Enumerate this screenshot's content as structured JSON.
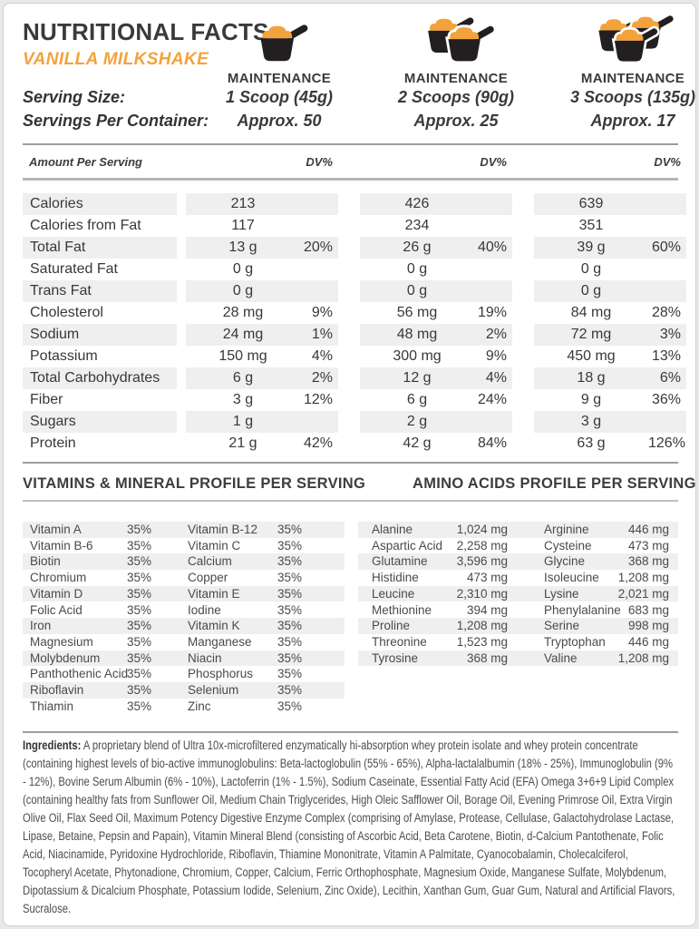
{
  "page": {
    "title": "NUTRITIONAL FACTS",
    "subtitle": "VANILLA MILKSHAKE",
    "accent_color": "#F2A33C",
    "icon_dark_color": "#231F20",
    "serving_size_label": "Serving Size:",
    "servings_per_container_label": "Servings Per Container:"
  },
  "columns": [
    {
      "plan": "MAINTENANCE",
      "serving_size": "1 Scoop (45g)",
      "servings": "Approx. 50",
      "scoops": 1
    },
    {
      "plan": "MAINTENANCE",
      "serving_size": "2 Scoops (90g)",
      "servings": "Approx. 25",
      "scoops": 2
    },
    {
      "plan": "MAINTENANCE",
      "serving_size": "3 Scoops (135g)",
      "servings": "Approx. 17",
      "scoops": 3
    }
  ],
  "nutrition_table": {
    "amount_header": "Amount Per Serving",
    "dv_header": "DV%",
    "rows": [
      {
        "name": "Calories",
        "cols": [
          [
            "213",
            ""
          ],
          [
            "426",
            ""
          ],
          [
            "639",
            ""
          ]
        ]
      },
      {
        "name": "Calories from Fat",
        "cols": [
          [
            "117",
            ""
          ],
          [
            "234",
            ""
          ],
          [
            "351",
            ""
          ]
        ]
      },
      {
        "name": "Total Fat",
        "cols": [
          [
            "13 g",
            "20%"
          ],
          [
            "26 g",
            "40%"
          ],
          [
            "39 g",
            "60%"
          ]
        ]
      },
      {
        "name": "Saturated Fat",
        "cols": [
          [
            "0 g",
            ""
          ],
          [
            "0 g",
            ""
          ],
          [
            "0 g",
            ""
          ]
        ]
      },
      {
        "name": "Trans Fat",
        "cols": [
          [
            "0 g",
            ""
          ],
          [
            "0 g",
            ""
          ],
          [
            "0 g",
            ""
          ]
        ]
      },
      {
        "name": "Cholesterol",
        "cols": [
          [
            "28 mg",
            "9%"
          ],
          [
            "56 mg",
            "19%"
          ],
          [
            "84 mg",
            "28%"
          ]
        ]
      },
      {
        "name": "Sodium",
        "cols": [
          [
            "24 mg",
            "1%"
          ],
          [
            "48 mg",
            "2%"
          ],
          [
            "72 mg",
            "3%"
          ]
        ]
      },
      {
        "name": "Potassium",
        "cols": [
          [
            "150 mg",
            "4%"
          ],
          [
            "300 mg",
            "9%"
          ],
          [
            "450 mg",
            "13%"
          ]
        ]
      },
      {
        "name": "Total Carbohydrates",
        "cols": [
          [
            "6 g",
            "2%"
          ],
          [
            "12 g",
            "4%"
          ],
          [
            "18 g",
            "6%"
          ]
        ]
      },
      {
        "name": "Fiber",
        "cols": [
          [
            "3 g",
            "12%"
          ],
          [
            "6 g",
            "24%"
          ],
          [
            "9 g",
            "36%"
          ]
        ]
      },
      {
        "name": "Sugars",
        "cols": [
          [
            "1 g",
            ""
          ],
          [
            "2 g",
            ""
          ],
          [
            "3 g",
            ""
          ]
        ]
      },
      {
        "name": "Protein",
        "cols": [
          [
            "21 g",
            "42%"
          ],
          [
            "42 g",
            "84%"
          ],
          [
            "63 g",
            "126%"
          ]
        ]
      }
    ]
  },
  "vitamins": {
    "title": "VITAMINS & MINERAL PROFILE PER SERVING",
    "rows": [
      [
        "Vitamin A",
        "35%",
        "Vitamin B-12",
        "35%"
      ],
      [
        "Vitamin B-6",
        "35%",
        "Vitamin C",
        "35%"
      ],
      [
        "Biotin",
        "35%",
        "Calcium",
        "35%"
      ],
      [
        "Chromium",
        "35%",
        "Copper",
        "35%"
      ],
      [
        "Vitamin D",
        "35%",
        "Vitamin E",
        "35%"
      ],
      [
        "Folic Acid",
        "35%",
        "Iodine",
        "35%"
      ],
      [
        "Iron",
        "35%",
        "Vitamin K",
        "35%"
      ],
      [
        "Magnesium",
        "35%",
        "Manganese",
        "35%"
      ],
      [
        "Molybdenum",
        "35%",
        "Niacin",
        "35%"
      ],
      [
        "Panthothenic Acid",
        "35%",
        "Phosphorus",
        "35%"
      ],
      [
        "Riboflavin",
        "35%",
        "Selenium",
        "35%"
      ],
      [
        "Thiamin",
        "35%",
        "Zinc",
        "35%"
      ]
    ]
  },
  "amino_acids": {
    "title": "AMINO ACIDS PROFILE PER SERVING",
    "rows": [
      [
        "Alanine",
        "1,024 mg",
        "Arginine",
        "446 mg"
      ],
      [
        "Aspartic Acid",
        "2,258 mg",
        "Cysteine",
        "473 mg"
      ],
      [
        "Glutamine",
        "3,596 mg",
        "Glycine",
        "368 mg"
      ],
      [
        "Histidine",
        "473 mg",
        "Isoleucine",
        "1,208 mg"
      ],
      [
        "Leucine",
        "2,310 mg",
        "Lysine",
        "2,021 mg"
      ],
      [
        "Methionine",
        "394 mg",
        "Phenylalanine",
        "683 mg"
      ],
      [
        "Proline",
        "1,208 mg",
        "Serine",
        "998 mg"
      ],
      [
        "Threonine",
        "1,523 mg",
        "Tryptophan",
        "446 mg"
      ],
      [
        "Tyrosine",
        "368 mg",
        "Valine",
        "1,208 mg"
      ]
    ]
  },
  "ingredients": {
    "label": "Ingredients:",
    "text": "A proprietary blend of Ultra 10x-microfiltered enzymatically hi-absorption whey protein isolate and whey protein concentrate (containing highest levels of bio-active immunoglobulins: Beta-lactoglobulin (55% - 65%), Alpha-lactalalbumin (18% - 25%), Immunoglobulin (9% - 12%), Bovine Serum Albumin (6% - 10%), Lactoferrin (1% - 1.5%), Sodium Caseinate, Essential Fatty Acid (EFA) Omega 3+6+9 Lipid Complex (containing healthy fats from Sunflower Oil, Medium Chain Triglycerides, High Oleic Safflower Oil, Borage Oil, Evening Primrose Oil, Extra Virgin Olive Oil, Flax Seed Oil, Maximum Potency Digestive Enzyme Complex (comprising of Amylase, Protease, Cellulase, Galactohydrolase Lactase, Lipase, Betaine, Pepsin and Papain), Vitamin Mineral Blend (consisting of Ascorbic Acid, Beta Carotene, Biotin, d-Calcium Pantothenate, Folic Acid, Niacinamide, Pyridoxine Hydrochloride, Riboflavin, Thiamine Mononitrate, Vitamin A Palmitate, Cyanocobalamin, Cholecalciferol, Tocopheryl Acetate, Phytonadione, Chromium, Copper, Calcium, Ferric Orthophosphate, Magnesium Oxide, Manganese Sulfate, Molybdenum, Dipotassium & Dicalcium Phosphate, Potassium Iodide, Selenium, Zinc Oxide), Lecithin, Xanthan Gum, Guar Gum, Natural and Artificial Flavors, Sucralose."
  }
}
